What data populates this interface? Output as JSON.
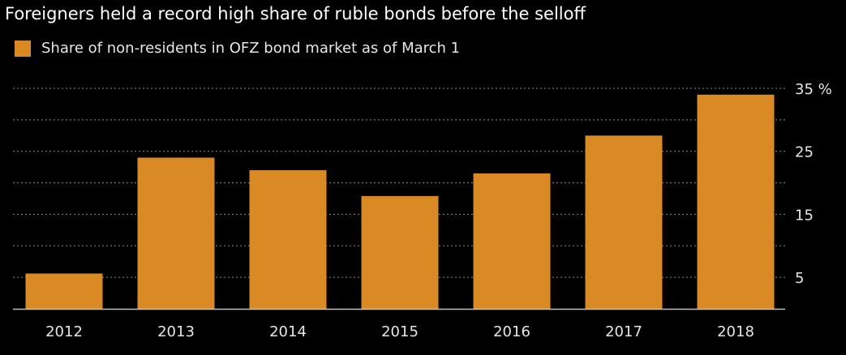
{
  "chart_data": {
    "type": "bar",
    "title": "Foreigners held a record high share of ruble bonds before the selloff",
    "categories": [
      "2012",
      "2013",
      "2014",
      "2015",
      "2016",
      "2017",
      "2018"
    ],
    "series": [
      {
        "name": "Share of non-residents in OFZ bond market as of March 1",
        "values": [
          5.6,
          24.0,
          22.0,
          17.9,
          21.5,
          27.5,
          34.0
        ]
      }
    ],
    "y_axis": {
      "min": 0,
      "max": 35,
      "ticks": [
        5,
        15,
        25,
        35
      ],
      "unit": "%",
      "position": "right"
    },
    "grid": true,
    "legend_position": "top-left",
    "colors": {
      "bar": "#d98a24",
      "background": "#000000",
      "grid": "#8a8a8a",
      "axis": "#bfbfbf"
    }
  }
}
